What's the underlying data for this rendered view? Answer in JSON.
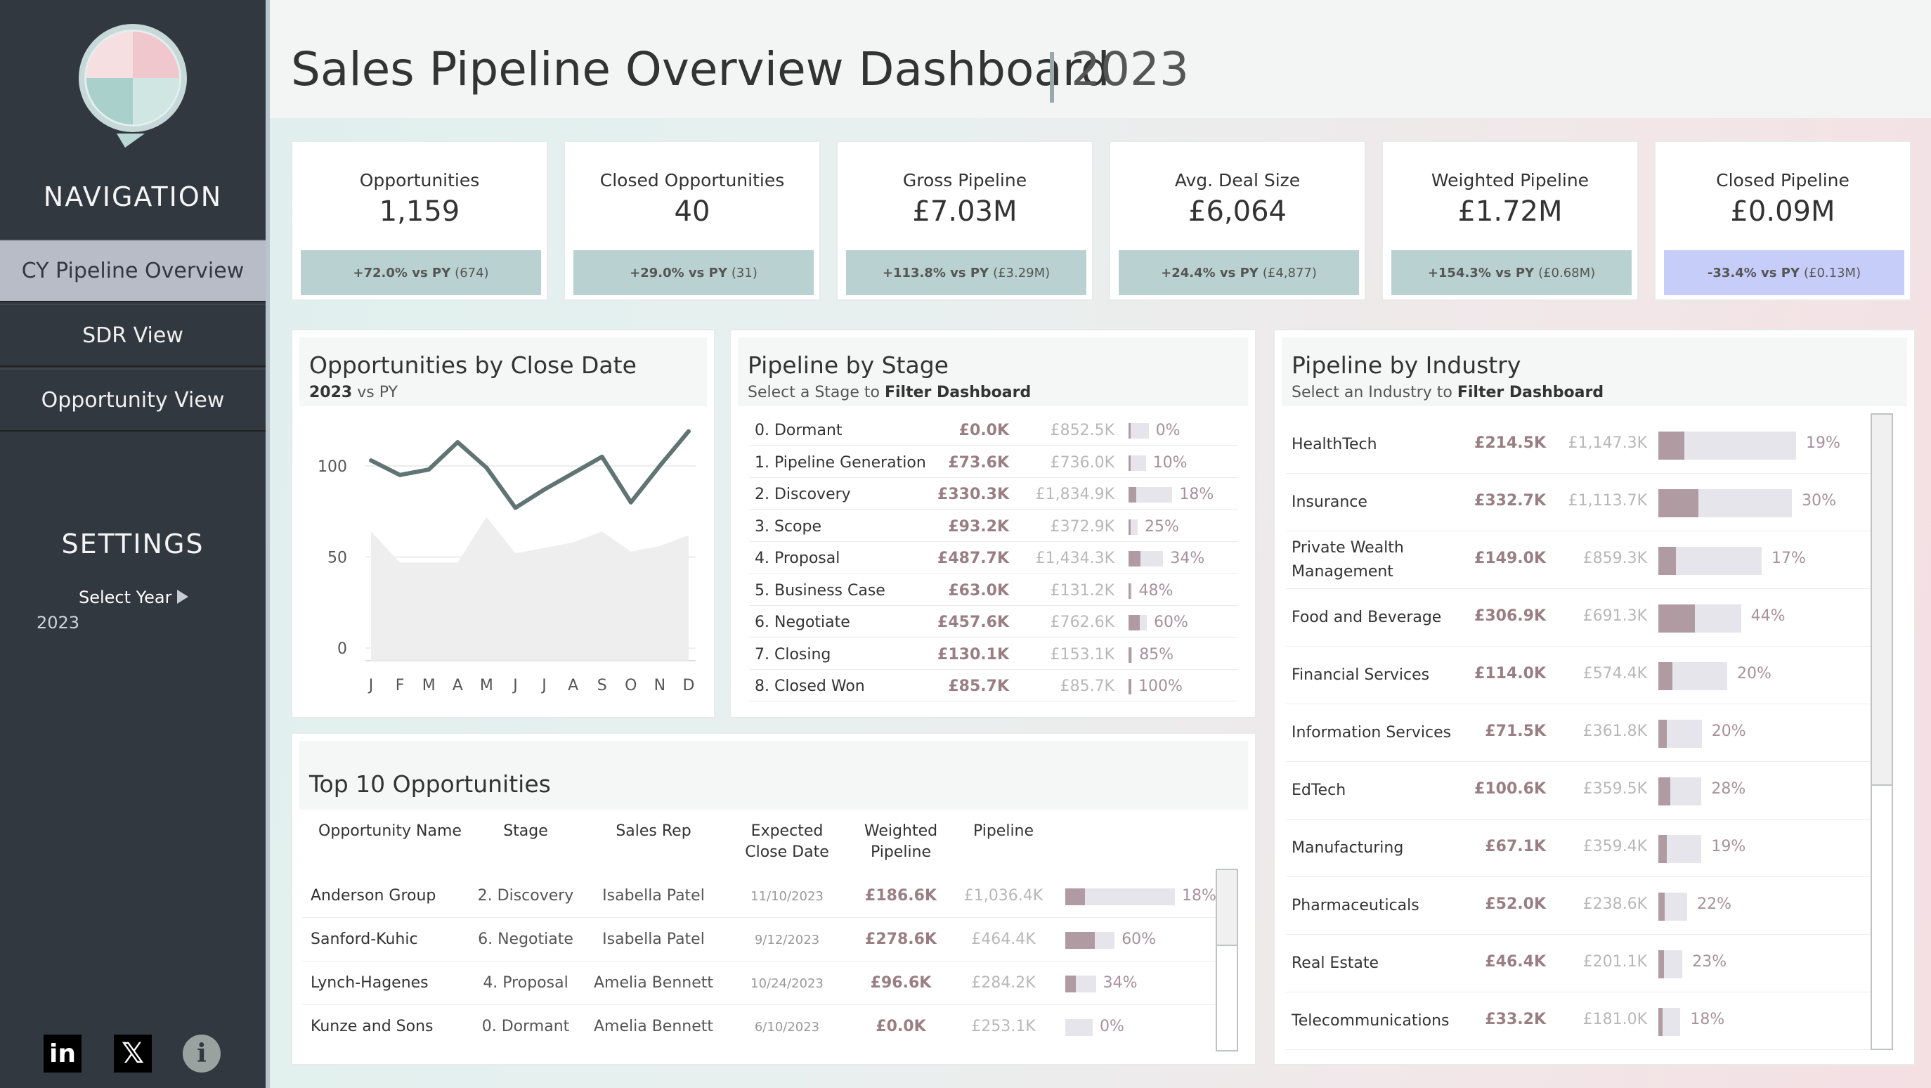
{
  "sidebar": {
    "nav_title": "NAVIGATION",
    "nav_items": [
      {
        "label": "CY Pipeline Overview",
        "active": true
      },
      {
        "label": "SDR View",
        "active": false
      },
      {
        "label": "Opportunity View",
        "active": false
      }
    ],
    "settings_title": "SETTINGS",
    "select_year_label": "Select Year",
    "year_value": "2023",
    "social_icons": [
      "linkedin-icon",
      "x-icon",
      "info-icon"
    ]
  },
  "header": {
    "title": "Sales Pipeline Overview Dashboard",
    "year": "2023"
  },
  "kpis": [
    {
      "label": "Opportunities",
      "value": "1,159",
      "change": "+72.0% vs PY",
      "prior": "(674)",
      "positive": true
    },
    {
      "label": "Closed Opportunities",
      "value": "40",
      "change": "+29.0% vs PY",
      "prior": "(31)",
      "positive": true
    },
    {
      "label": "Gross Pipeline",
      "value": "£7.03M",
      "change": "+113.8% vs PY",
      "prior": "(£3.29M)",
      "positive": true
    },
    {
      "label": "Avg. Deal Size",
      "value": "£6,064",
      "change": "+24.4% vs PY",
      "prior": "(£4,877)",
      "positive": true
    },
    {
      "label": "Weighted Pipeline",
      "value": "£1.72M",
      "change": "+154.3% vs PY",
      "prior": "(£0.68M)",
      "positive": true
    },
    {
      "label": "Closed Pipeline",
      "value": "£0.09M",
      "change": "-33.4% vs PY",
      "prior": "(£0.13M)",
      "positive": false
    }
  ],
  "close_date": {
    "title": "Opportunities by Close Date",
    "subtitle_bold": "2023",
    "subtitle_rest": " vs PY"
  },
  "chart_data": {
    "type": "line",
    "categories": [
      "J",
      "F",
      "M",
      "A",
      "M",
      "J",
      "J",
      "A",
      "S",
      "O",
      "N",
      "D"
    ],
    "series": [
      {
        "name": "2023",
        "values": [
          103,
          95,
          98,
          113,
          99,
          77,
          87,
          96,
          105,
          80,
          100,
          119
        ]
      },
      {
        "name": "PY",
        "values": [
          64,
          47,
          47,
          47,
          72,
          52,
          55,
          58,
          64,
          53,
          56,
          62
        ]
      }
    ],
    "yticks": [
      0,
      50,
      100
    ],
    "ylim": [
      -3,
      125
    ],
    "grid": true,
    "colors": {
      "cy": "#5f7473",
      "py_fill": "#eeeeee"
    }
  },
  "stage": {
    "title": "Pipeline by Stage",
    "subtitle_plain": "Select a Stage to ",
    "subtitle_bold": "Filter Dashboard",
    "rows": [
      {
        "name": "0. Dormant",
        "cy": "£0.0K",
        "py": "£852.5K",
        "pct": "0%",
        "share": 0.0,
        "scale": 0.22
      },
      {
        "name": "1. Pipeline Generation",
        "cy": "£73.6K",
        "py": "£736.0K",
        "pct": "10%",
        "share": 0.1,
        "scale": 0.19
      },
      {
        "name": "2. Discovery",
        "cy": "£330.3K",
        "py": "£1,834.9K",
        "pct": "18%",
        "share": 0.18,
        "scale": 0.48
      },
      {
        "name": "3. Scope",
        "cy": "£93.2K",
        "py": "£372.9K",
        "pct": "25%",
        "share": 0.25,
        "scale": 0.1
      },
      {
        "name": "4. Proposal",
        "cy": "£487.7K",
        "py": "£1,434.3K",
        "pct": "34%",
        "share": 0.34,
        "scale": 0.38
      },
      {
        "name": "5. Business Case",
        "cy": "£63.0K",
        "py": "£131.2K",
        "pct": "48%",
        "share": 0.48,
        "scale": 0.035
      },
      {
        "name": "6. Negotiate",
        "cy": "£457.6K",
        "py": "£762.6K",
        "pct": "60%",
        "share": 0.6,
        "scale": 0.2
      },
      {
        "name": "7. Closing",
        "cy": "£130.1K",
        "py": "£153.1K",
        "pct": "85%",
        "share": 0.85,
        "scale": 0.04
      },
      {
        "name": "8. Closed Won",
        "cy": "£85.7K",
        "py": "£85.7K",
        "pct": "100%",
        "share": 1.0,
        "scale": 0.025
      }
    ]
  },
  "industry": {
    "title": "Pipeline by Industry",
    "subtitle_plain": "Select an Industry to ",
    "subtitle_bold": "Filter Dashboard",
    "rows": [
      {
        "name": "HealthTech",
        "cy": "£214.5K",
        "py": "£1,147.3K",
        "pct": "19%",
        "share": 0.19,
        "scale": 1.0
      },
      {
        "name": "Insurance",
        "cy": "£332.7K",
        "py": "£1,113.7K",
        "pct": "30%",
        "share": 0.3,
        "scale": 0.97
      },
      {
        "name": "Private Wealth Management",
        "cy": "£149.0K",
        "py": "£859.3K",
        "pct": "17%",
        "share": 0.17,
        "scale": 0.75
      },
      {
        "name": "Food and Beverage",
        "cy": "£306.9K",
        "py": "£691.3K",
        "pct": "44%",
        "share": 0.44,
        "scale": 0.6
      },
      {
        "name": "Financial Services",
        "cy": "£114.0K",
        "py": "£574.4K",
        "pct": "20%",
        "share": 0.2,
        "scale": 0.5
      },
      {
        "name": "Information Services",
        "cy": "£71.5K",
        "py": "£361.8K",
        "pct": "20%",
        "share": 0.2,
        "scale": 0.315
      },
      {
        "name": "EdTech",
        "cy": "£100.6K",
        "py": "£359.5K",
        "pct": "28%",
        "share": 0.28,
        "scale": 0.313
      },
      {
        "name": "Manufacturing",
        "cy": "£67.1K",
        "py": "£359.4K",
        "pct": "19%",
        "share": 0.19,
        "scale": 0.313
      },
      {
        "name": "Pharmaceuticals",
        "cy": "£52.0K",
        "py": "£238.6K",
        "pct": "22%",
        "share": 0.22,
        "scale": 0.21
      },
      {
        "name": "Real Estate",
        "cy": "£46.4K",
        "py": "£201.1K",
        "pct": "23%",
        "share": 0.23,
        "scale": 0.175
      },
      {
        "name": "Telecommunications",
        "cy": "£33.2K",
        "py": "£181.0K",
        "pct": "18%",
        "share": 0.18,
        "scale": 0.16
      }
    ]
  },
  "top10": {
    "title": "Top 10 Opportunities",
    "headers": [
      "Opportunity Name",
      "Stage",
      "Sales Rep",
      "Expected\nClose Date",
      "Weighted\nPipeline",
      "Pipeline"
    ],
    "rows": [
      {
        "name": "Anderson Group",
        "stage": "2. Discovery",
        "rep": "Isabella Patel",
        "date": "11/10/2023",
        "weighted": "£186.6K",
        "pipeline": "£1,036.4K",
        "pct": "18%",
        "share": 0.18,
        "scale": 1.0
      },
      {
        "name": "Sanford-Kuhic",
        "stage": "6. Negotiate",
        "rep": "Isabella Patel",
        "date": "9/12/2023",
        "weighted": "£278.6K",
        "pipeline": "£464.4K",
        "pct": "60%",
        "share": 0.6,
        "scale": 0.45
      },
      {
        "name": "Lynch-Hagenes",
        "stage": "4. Proposal",
        "rep": "Amelia Bennett",
        "date": "10/24/2023",
        "weighted": "£96.6K",
        "pipeline": "£284.2K",
        "pct": "34%",
        "share": 0.34,
        "scale": 0.28
      },
      {
        "name": "Kunze and Sons",
        "stage": "0. Dormant",
        "rep": "Amelia Bennett",
        "date": "6/10/2023",
        "weighted": "£0.0K",
        "pipeline": "£253.1K",
        "pct": "0%",
        "share": 0.0,
        "scale": 0.25
      }
    ]
  }
}
